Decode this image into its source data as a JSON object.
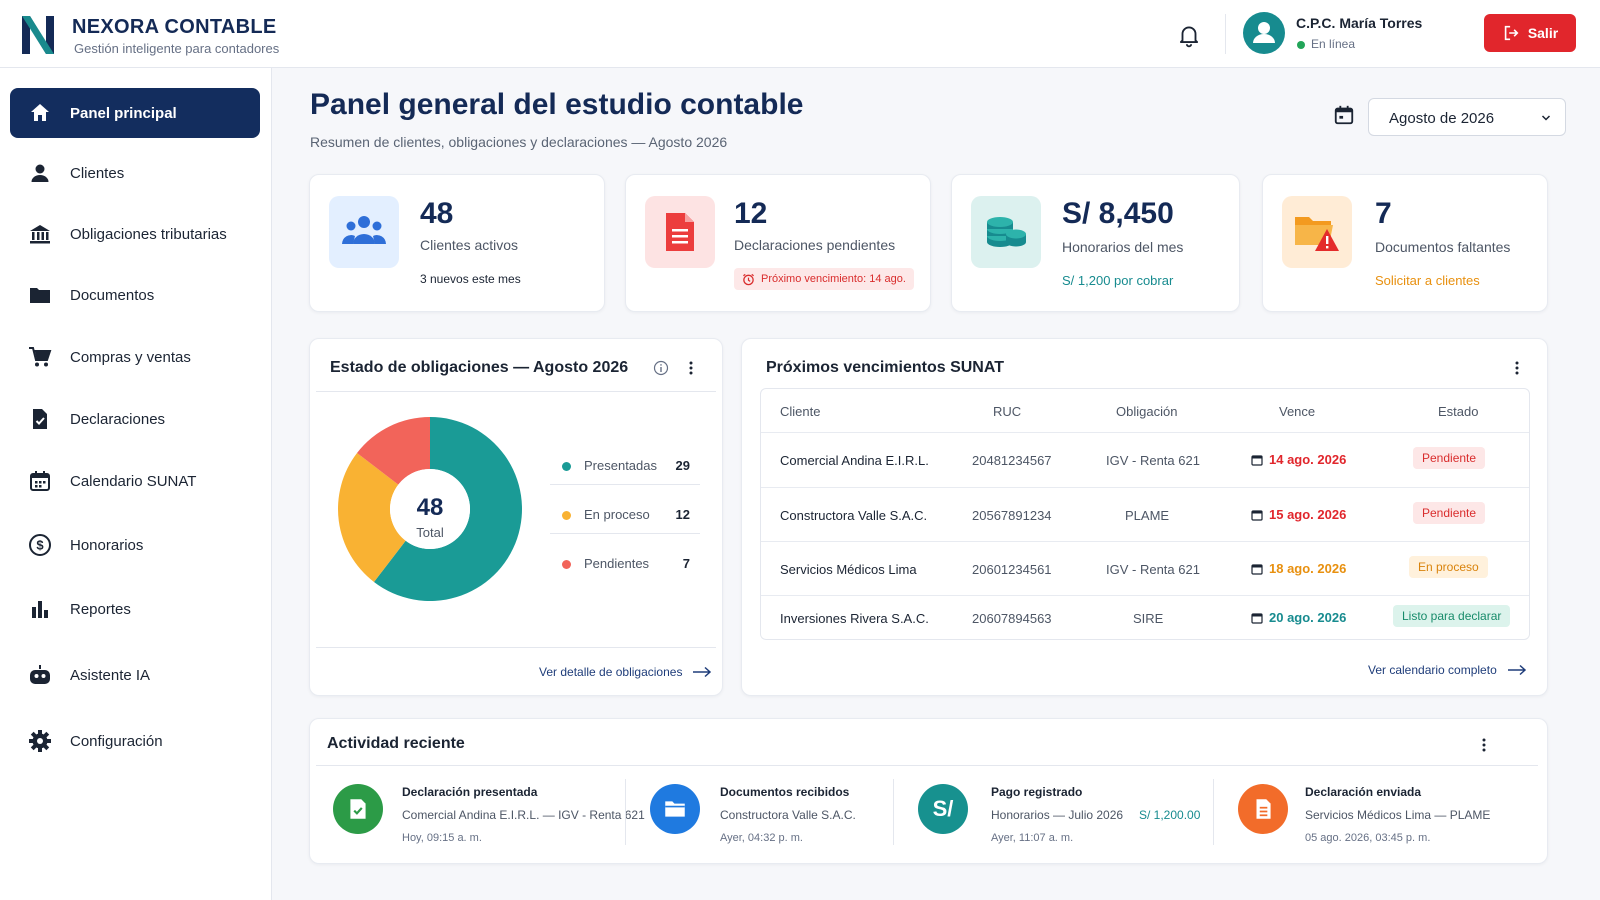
{
  "brand": {
    "name": "NEXORA CONTABLE",
    "tagline": "Gestión inteligente para contadores"
  },
  "user": {
    "name": "C.P.C. María Torres",
    "status": "En línea",
    "logout_label": "Salir"
  },
  "colors": {
    "primary": "#132d5e",
    "teal": "#1a9b96",
    "amber": "#f9b233",
    "coral": "#f2645a",
    "danger": "#e1262c",
    "success": "#22a559"
  },
  "sidebar": {
    "items": [
      {
        "label": "Panel principal",
        "icon": "home-icon",
        "active": true
      },
      {
        "label": "Clientes",
        "icon": "user-icon"
      },
      {
        "label": "Obligaciones tributarias",
        "icon": "bank-icon"
      },
      {
        "label": "Documentos",
        "icon": "folder-icon"
      },
      {
        "label": "Compras y ventas",
        "icon": "cart-icon"
      },
      {
        "label": "Declaraciones",
        "icon": "doc-check-icon"
      },
      {
        "label": "Calendario SUNAT",
        "icon": "calendar-icon"
      },
      {
        "label": "Honorarios",
        "icon": "dollar-circle-icon"
      },
      {
        "label": "Reportes",
        "icon": "bar-chart-icon"
      },
      {
        "label": "Asistente IA",
        "icon": "robot-icon"
      },
      {
        "label": "Configuración",
        "icon": "gear-icon"
      }
    ]
  },
  "main": {
    "title": "Panel general del estudio contable",
    "subtitle": "Resumen de clientes, obligaciones y declaraciones — Agosto 2026",
    "period": "Agosto de 2026"
  },
  "kpis": [
    {
      "value": "48",
      "label": "Clientes activos",
      "note": "3 nuevos este mes",
      "icon": "users-icon"
    },
    {
      "value": "12",
      "label": "Declaraciones pendientes",
      "note": "Próximo vencimiento: 14 ago.",
      "icon": "document-icon"
    },
    {
      "value": "S/ 8,450",
      "label": "Honorarios del mes",
      "note": "S/ 1,200 por cobrar",
      "icon": "coins-icon"
    },
    {
      "value": "7",
      "label": "Documentos faltantes",
      "note": "Solicitar a clientes",
      "icon": "folder-alert-icon"
    }
  ],
  "obligations": {
    "title": "Estado de obligaciones — Agosto 2026",
    "total": "48",
    "total_label": "Total",
    "link": "Ver detalle de obligaciones"
  },
  "chart_data": {
    "type": "pie",
    "categories": [
      "Presentadas",
      "En proceso",
      "Pendientes"
    ],
    "values": [
      29,
      12,
      7
    ],
    "colors": [
      "#1a9b96",
      "#f9b233",
      "#f2645a"
    ]
  },
  "deadlines": {
    "title": "Próximos vencimientos SUNAT",
    "columns": [
      "Cliente",
      "RUC",
      "Obligación",
      "Vence",
      "Estado"
    ],
    "rows": [
      {
        "client": "Comercial Andina E.I.R.L.",
        "ruc": "20481234567",
        "obligation": "IGV - Renta 621",
        "due": "14 ago. 2026",
        "status": "Pendiente",
        "tone": "red"
      },
      {
        "client": "Constructora Valle S.A.C.",
        "ruc": "20567891234",
        "obligation": "PLAME",
        "due": "15 ago. 2026",
        "status": "Pendiente",
        "tone": "red"
      },
      {
        "client": "Servicios Médicos Lima",
        "ruc": "20601234561",
        "obligation": "IGV - Renta 621",
        "due": "18 ago. 2026",
        "status": "En proceso",
        "tone": "amber"
      },
      {
        "client": "Inversiones Rivera S.A.C.",
        "ruc": "20607894563",
        "obligation": "SIRE",
        "due": "20 ago. 2026",
        "status": "Listo para declarar",
        "tone": "teal"
      }
    ],
    "link": "Ver calendario completo"
  },
  "activity": {
    "title": "Actividad reciente",
    "items": [
      {
        "title": "Declaración presentada",
        "desc": "Comercial Andina E.I.R.L. — IGV - Renta 621",
        "time": "Hoy, 09:15 a. m.",
        "icon": "check-doc-icon"
      },
      {
        "title": "Documentos recibidos",
        "desc": "Constructora Valle S.A.C.",
        "time": "Ayer, 04:32 p. m.",
        "icon": "folder-icon"
      },
      {
        "title": "Pago registrado",
        "desc": "Honorarios — Julio 2026",
        "amount": "S/ 1,200.00",
        "time": "Ayer, 11:07 a. m.",
        "icon": "soles-icon",
        "icon_text": "S/"
      },
      {
        "title": "Declaración enviada",
        "desc": "Servicios Médicos Lima — PLAME",
        "time": "05 ago. 2026, 03:45 p. m.",
        "icon": "document-icon"
      }
    ]
  }
}
